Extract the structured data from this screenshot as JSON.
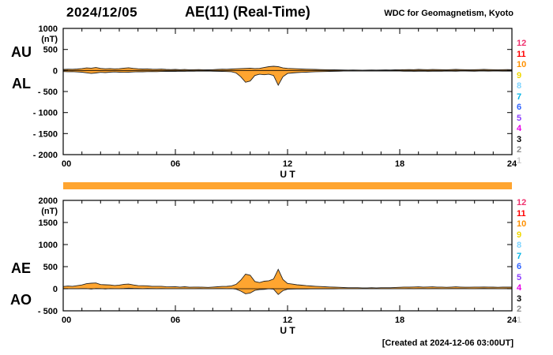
{
  "header": {
    "date": "2024/12/05",
    "title": "AE(11) (Real-Time)",
    "credit": "WDC for Geomagnetism, Kyoto"
  },
  "footer": {
    "created_label": "[Created at 2024-12-06 03:00UT]"
  },
  "stations": [
    {
      "label": "12",
      "color": "#f0326e"
    },
    {
      "label": "11",
      "color": "#ff0000"
    },
    {
      "label": "10",
      "color": "#ff9000"
    },
    {
      "label": "9",
      "color": "#f0d800"
    },
    {
      "label": "8",
      "color": "#7fd4ff"
    },
    {
      "label": "7",
      "color": "#00b4e6"
    },
    {
      "label": "6",
      "color": "#2f62ff"
    },
    {
      "label": "5",
      "color": "#8c3cff"
    },
    {
      "label": "4",
      "color": "#e800e8"
    },
    {
      "label": "3",
      "color": "#000000"
    },
    {
      "label": "2",
      "color": "#8c8c8c"
    },
    {
      "label": "1",
      "color": "#cccccc"
    }
  ],
  "colors": {
    "trace_fill": "#FFA530",
    "trace_stroke": "#222222",
    "bar": "#FFA530",
    "axis": "#000000"
  },
  "chart_data": [
    {
      "type": "area",
      "panel": "top",
      "left_labels": [
        "AU",
        "AL"
      ],
      "xlabel": "U T",
      "ylabel": "(nT)",
      "xlim": [
        0,
        24
      ],
      "ylim": [
        -2000,
        1000
      ],
      "yticks": [
        1000,
        500,
        0,
        -500,
        -1000,
        -1500,
        -2000
      ],
      "ytick_labels": [
        "1000",
        "500",
        "0",
        "- 500",
        "- 1000",
        "- 1500",
        "- 2000"
      ],
      "xtick_values": [
        0,
        6,
        12,
        18,
        24
      ],
      "xticks": [
        "00",
        "06",
        "12",
        "18",
        "24"
      ],
      "grid": false,
      "t_start": 0,
      "t_step": 0.25,
      "series": [
        {
          "name": "AU",
          "values": [
            25,
            30,
            28,
            35,
            45,
            60,
            55,
            70,
            50,
            40,
            45,
            38,
            42,
            55,
            65,
            50,
            40,
            35,
            38,
            30,
            28,
            32,
            25,
            22,
            25,
            20,
            24,
            18,
            20,
            22,
            18,
            16,
            20,
            25,
            30,
            28,
            35,
            40,
            45,
            50,
            55,
            45,
            50,
            70,
            90,
            100,
            90,
            60,
            50,
            45,
            40,
            35,
            30,
            28,
            25,
            22,
            20,
            18,
            15,
            14,
            12,
            10,
            12,
            10,
            8,
            10,
            12,
            10,
            12,
            14,
            12,
            15,
            18,
            20,
            22,
            20,
            25,
            22,
            20,
            24,
            22,
            20,
            18,
            22,
            25,
            22,
            20,
            18,
            20,
            22,
            25,
            22,
            20,
            18,
            20,
            22,
            20
          ]
        },
        {
          "name": "AL",
          "values": [
            -25,
            -30,
            -28,
            -35,
            -40,
            -55,
            -70,
            -60,
            -45,
            -50,
            -40,
            -35,
            -40,
            -45,
            -40,
            -35,
            -30,
            -32,
            -28,
            -25,
            -28,
            -24,
            -22,
            -20,
            -22,
            -18,
            -20,
            -16,
            -18,
            -15,
            -16,
            -14,
            -18,
            -20,
            -22,
            -25,
            -30,
            -60,
            -150,
            -280,
            -250,
            -120,
            -90,
            -100,
            -90,
            -120,
            -350,
            -150,
            -70,
            -60,
            -50,
            -45,
            -40,
            -35,
            -30,
            -28,
            -25,
            -22,
            -20,
            -18,
            -15,
            -14,
            -12,
            -14,
            -12,
            -10,
            -12,
            -10,
            -12,
            -10,
            -12,
            -14,
            -15,
            -18,
            -16,
            -20,
            -18,
            -16,
            -20,
            -18,
            -16,
            -18,
            -15,
            -16,
            -18,
            -15,
            -14,
            -16,
            -18,
            -15,
            -14,
            -16,
            -15,
            -14,
            -16,
            -15,
            -16
          ]
        }
      ]
    },
    {
      "type": "area",
      "panel": "bottom",
      "left_labels": [
        "AE",
        "AO"
      ],
      "xlabel": "U T",
      "ylabel": "(nT)",
      "xlim": [
        0,
        24
      ],
      "ylim": [
        -500,
        2000
      ],
      "yticks": [
        2000,
        1500,
        1000,
        500,
        0,
        -500
      ],
      "ytick_labels": [
        "2000",
        "1500",
        "1000",
        "500",
        "0",
        "- 500"
      ],
      "xtick_values": [
        0,
        6,
        12,
        18,
        24
      ],
      "xticks": [
        "00",
        "06",
        "12",
        "18",
        "24"
      ],
      "grid": false,
      "t_start": 0,
      "t_step": 0.25,
      "series": [
        {
          "name": "AE",
          "values": [
            50,
            60,
            56,
            70,
            85,
            115,
            125,
            130,
            95,
            90,
            85,
            73,
            82,
            100,
            105,
            85,
            70,
            67,
            66,
            55,
            56,
            56,
            47,
            42,
            47,
            38,
            44,
            34,
            38,
            37,
            34,
            30,
            38,
            45,
            52,
            53,
            65,
            100,
            195,
            330,
            305,
            165,
            140,
            170,
            180,
            220,
            440,
            210,
            120,
            105,
            90,
            80,
            70,
            63,
            55,
            50,
            45,
            40,
            35,
            32,
            27,
            24,
            24,
            24,
            20,
            20,
            24,
            20,
            24,
            24,
            24,
            29,
            33,
            38,
            38,
            40,
            43,
            38,
            40,
            42,
            38,
            38,
            33,
            38,
            43,
            37,
            34,
            34,
            38,
            37,
            39,
            38,
            35,
            32,
            36,
            37,
            36
          ]
        },
        {
          "name": "AO",
          "values": [
            0,
            0,
            0,
            0,
            3,
            3,
            -8,
            5,
            3,
            -5,
            3,
            2,
            1,
            5,
            13,
            8,
            5,
            2,
            5,
            3,
            0,
            4,
            2,
            1,
            2,
            1,
            2,
            1,
            1,
            4,
            1,
            1,
            1,
            3,
            4,
            2,
            3,
            -10,
            -53,
            -115,
            -98,
            -38,
            -20,
            -15,
            0,
            -10,
            -130,
            -45,
            -10,
            -8,
            -5,
            -5,
            -5,
            -4,
            -3,
            -3,
            -3,
            -2,
            -3,
            -2,
            -2,
            -2,
            0,
            -2,
            -2,
            0,
            0,
            0,
            0,
            2,
            0,
            1,
            2,
            1,
            3,
            0,
            4,
            3,
            0,
            3,
            3,
            1,
            2,
            3,
            4,
            4,
            3,
            1,
            1,
            4,
            6,
            3,
            3,
            2,
            2,
            4,
            2
          ]
        }
      ]
    }
  ]
}
